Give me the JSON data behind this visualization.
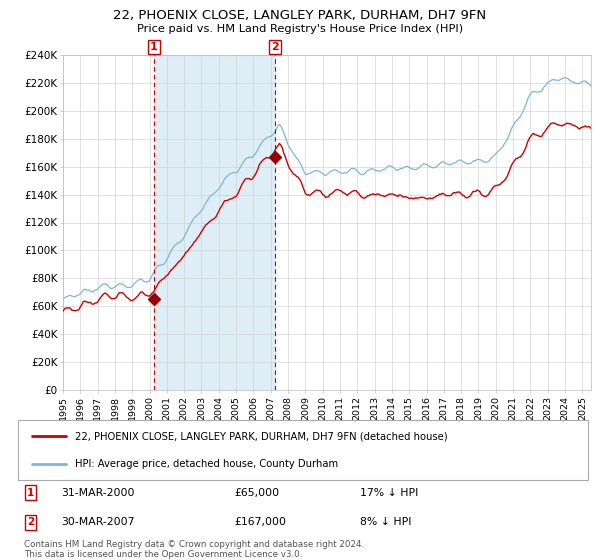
{
  "title": "22, PHOENIX CLOSE, LANGLEY PARK, DURHAM, DH7 9FN",
  "subtitle": "Price paid vs. HM Land Registry's House Price Index (HPI)",
  "legend_line1": "22, PHOENIX CLOSE, LANGLEY PARK, DURHAM, DH7 9FN (detached house)",
  "legend_line2": "HPI: Average price, detached house, County Durham",
  "transaction1_date": "31-MAR-2000",
  "transaction1_price": "£65,000",
  "transaction1_note": "17% ↓ HPI",
  "transaction2_date": "30-MAR-2007",
  "transaction2_price": "£167,000",
  "transaction2_note": "8% ↓ HPI",
  "footer": "Contains HM Land Registry data © Crown copyright and database right 2024.\nThis data is licensed under the Open Government Licence v3.0.",
  "hpi_color": "#7ab8d9",
  "price_color": "#cc0000",
  "marker_color": "#990000",
  "shade_color": "#daeaf5",
  "vline_color": "#cc0000",
  "grid_color": "#cccccc",
  "bg_color": "#f8f8f8",
  "ylim": [
    0,
    240000
  ],
  "yticks": [
    0,
    20000,
    40000,
    60000,
    80000,
    100000,
    120000,
    140000,
    160000,
    180000,
    200000,
    220000,
    240000
  ],
  "transaction1_x": 2000.25,
  "transaction1_y": 65000,
  "transaction2_x": 2007.25,
  "transaction2_y": 167000,
  "xmin": 1995.0,
  "xmax": 2025.5
}
